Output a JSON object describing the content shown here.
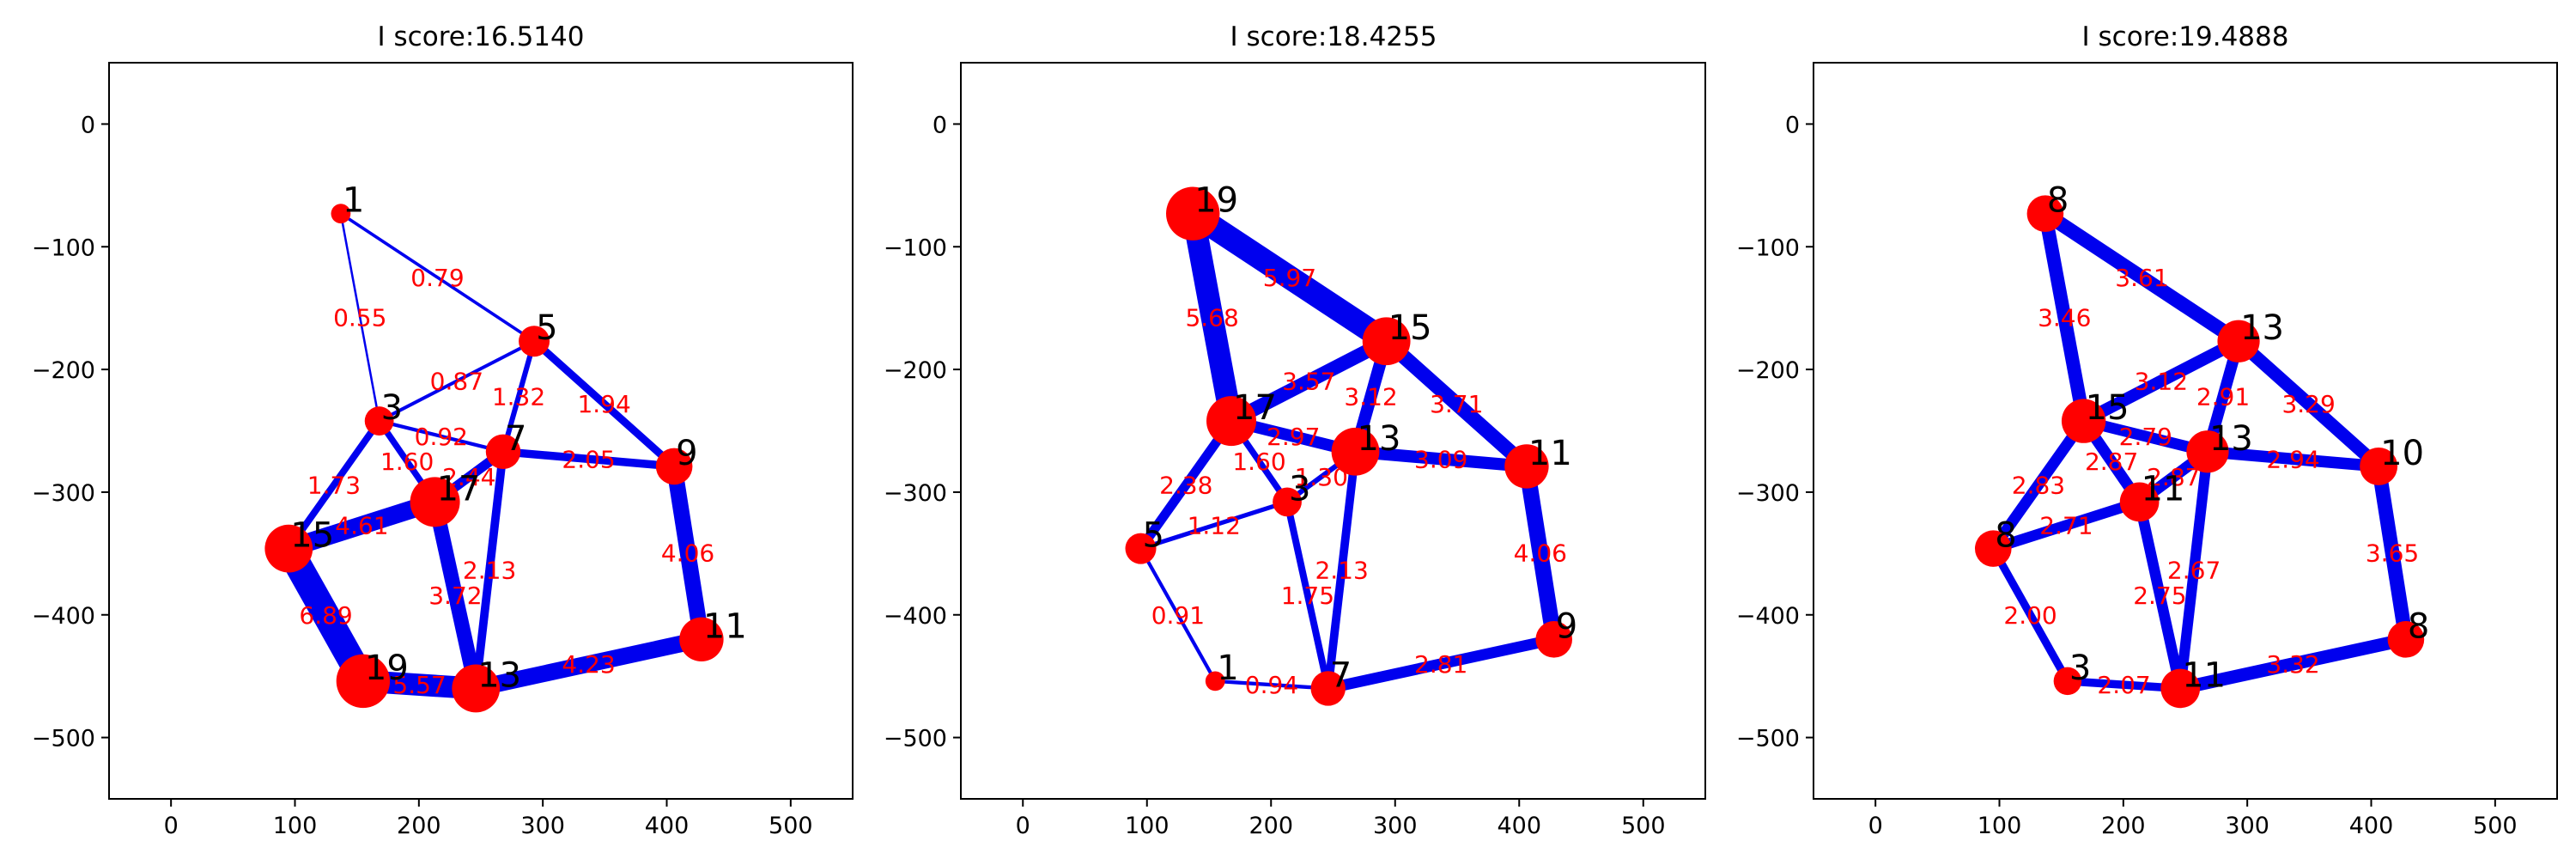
{
  "figure": {
    "panels": [
      {
        "title": "I score:16.5140",
        "nodes": [
          {
            "id": "a",
            "label": "1",
            "x": 137,
            "y": -73,
            "size": 0.2
          },
          {
            "id": "b",
            "label": "5",
            "x": 293,
            "y": -177,
            "size": 0.5
          },
          {
            "id": "c",
            "label": "3",
            "x": 168,
            "y": -242,
            "size": 0.45
          },
          {
            "id": "d",
            "label": "7",
            "x": 268,
            "y": -267,
            "size": 0.6
          },
          {
            "id": "e",
            "label": "9",
            "x": 406,
            "y": -279,
            "size": 0.65
          },
          {
            "id": "f",
            "label": "17",
            "x": 213,
            "y": -308,
            "size": 1.0
          },
          {
            "id": "g",
            "label": "15",
            "x": 95,
            "y": -346,
            "size": 0.95
          },
          {
            "id": "h",
            "label": "11",
            "x": 428,
            "y": -420,
            "size": 0.85
          },
          {
            "id": "i",
            "label": "19",
            "x": 155,
            "y": -454,
            "size": 1.1
          },
          {
            "id": "j",
            "label": "13",
            "x": 246,
            "y": -460,
            "size": 0.95
          }
        ],
        "edges": [
          {
            "from": "a",
            "to": "b",
            "weight": 0.79,
            "label": "0.79"
          },
          {
            "from": "a",
            "to": "c",
            "weight": 0.55,
            "label": "0.55"
          },
          {
            "from": "c",
            "to": "b",
            "weight": 0.87,
            "label": "0.87"
          },
          {
            "from": "b",
            "to": "d",
            "weight": 1.32,
            "label": "1.32"
          },
          {
            "from": "b",
            "to": "e",
            "weight": 1.94,
            "label": "1.94"
          },
          {
            "from": "c",
            "to": "d",
            "weight": 0.92,
            "label": "0.92"
          },
          {
            "from": "c",
            "to": "f",
            "weight": 1.6,
            "label": "1.60"
          },
          {
            "from": "c",
            "to": "g",
            "weight": 1.73,
            "label": "1.73"
          },
          {
            "from": "d",
            "to": "e",
            "weight": 2.05,
            "label": "2.05"
          },
          {
            "from": "d",
            "to": "f",
            "weight": 2.44,
            "label": "2.44"
          },
          {
            "from": "d",
            "to": "j",
            "weight": 2.13,
            "label": "2.13"
          },
          {
            "from": "f",
            "to": "g",
            "weight": 4.61,
            "label": "4.61"
          },
          {
            "from": "f",
            "to": "j",
            "weight": 3.72,
            "label": "3.72"
          },
          {
            "from": "e",
            "to": "h",
            "weight": 4.06,
            "label": "4.06"
          },
          {
            "from": "g",
            "to": "i",
            "weight": 6.89,
            "label": "6.89"
          },
          {
            "from": "i",
            "to": "j",
            "weight": 5.57,
            "label": "5.57"
          },
          {
            "from": "j",
            "to": "h",
            "weight": 4.23,
            "label": "4.23"
          }
        ]
      },
      {
        "title": "I score:18.4255",
        "nodes": [
          {
            "id": "a",
            "label": "19",
            "x": 137,
            "y": -73,
            "size": 1.1
          },
          {
            "id": "b",
            "label": "15",
            "x": 293,
            "y": -177,
            "size": 0.95
          },
          {
            "id": "c",
            "label": "17",
            "x": 168,
            "y": -242,
            "size": 1.0
          },
          {
            "id": "d",
            "label": "13",
            "x": 268,
            "y": -267,
            "size": 0.95
          },
          {
            "id": "e",
            "label": "11",
            "x": 406,
            "y": -279,
            "size": 0.85
          },
          {
            "id": "f",
            "label": "3",
            "x": 213,
            "y": -308,
            "size": 0.45
          },
          {
            "id": "g",
            "label": "5",
            "x": 95,
            "y": -346,
            "size": 0.5
          },
          {
            "id": "h",
            "label": "9",
            "x": 428,
            "y": -420,
            "size": 0.65
          },
          {
            "id": "i",
            "label": "1",
            "x": 155,
            "y": -454,
            "size": 0.2
          },
          {
            "id": "j",
            "label": "7",
            "x": 246,
            "y": -460,
            "size": 0.6
          }
        ],
        "edges": [
          {
            "from": "a",
            "to": "b",
            "weight": 5.97,
            "label": "5.97"
          },
          {
            "from": "a",
            "to": "c",
            "weight": 5.68,
            "label": "5.68"
          },
          {
            "from": "c",
            "to": "b",
            "weight": 3.57,
            "label": "3.57"
          },
          {
            "from": "b",
            "to": "d",
            "weight": 3.12,
            "label": "3.12"
          },
          {
            "from": "b",
            "to": "e",
            "weight": 3.71,
            "label": "3.71"
          },
          {
            "from": "c",
            "to": "d",
            "weight": 2.97,
            "label": "2.97"
          },
          {
            "from": "c",
            "to": "f",
            "weight": 1.6,
            "label": "1.60"
          },
          {
            "from": "c",
            "to": "g",
            "weight": 2.38,
            "label": "2.38"
          },
          {
            "from": "d",
            "to": "e",
            "weight": 3.09,
            "label": "3.09"
          },
          {
            "from": "d",
            "to": "f",
            "weight": 1.3,
            "label": "1.30"
          },
          {
            "from": "d",
            "to": "j",
            "weight": 2.13,
            "label": "2.13"
          },
          {
            "from": "f",
            "to": "g",
            "weight": 1.12,
            "label": "1.12"
          },
          {
            "from": "f",
            "to": "j",
            "weight": 1.75,
            "label": "1.75"
          },
          {
            "from": "e",
            "to": "h",
            "weight": 4.06,
            "label": "4.06"
          },
          {
            "from": "g",
            "to": "i",
            "weight": 0.91,
            "label": "0.91"
          },
          {
            "from": "i",
            "to": "j",
            "weight": 0.94,
            "label": "0.94"
          },
          {
            "from": "j",
            "to": "h",
            "weight": 2.81,
            "label": "2.81"
          }
        ]
      },
      {
        "title": "I score:19.4888",
        "nodes": [
          {
            "id": "a",
            "label": "8",
            "x": 137,
            "y": -73,
            "size": 0.65
          },
          {
            "id": "b",
            "label": "13",
            "x": 293,
            "y": -177,
            "size": 0.8
          },
          {
            "id": "c",
            "label": "15",
            "x": 168,
            "y": -242,
            "size": 0.85
          },
          {
            "id": "d",
            "label": "13",
            "x": 268,
            "y": -267,
            "size": 0.8
          },
          {
            "id": "e",
            "label": "10",
            "x": 406,
            "y": -279,
            "size": 0.68
          },
          {
            "id": "f",
            "label": "11",
            "x": 213,
            "y": -308,
            "size": 0.72
          },
          {
            "id": "g",
            "label": "8",
            "x": 95,
            "y": -346,
            "size": 0.65
          },
          {
            "id": "h",
            "label": "8",
            "x": 428,
            "y": -420,
            "size": 0.65
          },
          {
            "id": "i",
            "label": "3",
            "x": 155,
            "y": -454,
            "size": 0.42
          },
          {
            "id": "j",
            "label": "11",
            "x": 246,
            "y": -460,
            "size": 0.72
          }
        ],
        "edges": [
          {
            "from": "a",
            "to": "b",
            "weight": 3.61,
            "label": "3.61"
          },
          {
            "from": "a",
            "to": "c",
            "weight": 3.46,
            "label": "3.46"
          },
          {
            "from": "c",
            "to": "b",
            "weight": 3.12,
            "label": "3.12"
          },
          {
            "from": "b",
            "to": "d",
            "weight": 2.91,
            "label": "2.91"
          },
          {
            "from": "b",
            "to": "e",
            "weight": 3.29,
            "label": "3.29"
          },
          {
            "from": "c",
            "to": "d",
            "weight": 2.79,
            "label": "2.79"
          },
          {
            "from": "c",
            "to": "f",
            "weight": 2.87,
            "label": "2.87"
          },
          {
            "from": "c",
            "to": "g",
            "weight": 2.83,
            "label": "2.83"
          },
          {
            "from": "d",
            "to": "e",
            "weight": 2.94,
            "label": "2.94"
          },
          {
            "from": "d",
            "to": "f",
            "weight": 2.87,
            "label": "2.87"
          },
          {
            "from": "d",
            "to": "j",
            "weight": 2.67,
            "label": "2.67"
          },
          {
            "from": "f",
            "to": "g",
            "weight": 2.71,
            "label": "2.71"
          },
          {
            "from": "f",
            "to": "j",
            "weight": 2.75,
            "label": "2.75"
          },
          {
            "from": "e",
            "to": "h",
            "weight": 3.65,
            "label": "3.65"
          },
          {
            "from": "g",
            "to": "i",
            "weight": 2.0,
            "label": "2.00"
          },
          {
            "from": "i",
            "to": "j",
            "weight": 2.07,
            "label": "2.07"
          },
          {
            "from": "j",
            "to": "h",
            "weight": 3.32,
            "label": "3.32"
          }
        ]
      }
    ],
    "axes": {
      "xlim": [
        -50,
        550
      ],
      "ylim": [
        -550,
        50
      ],
      "xticks": [
        0,
        100,
        200,
        300,
        400,
        500
      ],
      "yticks": [
        0,
        -100,
        -200,
        -300,
        -400,
        -500
      ],
      "xtick_labels": [
        "0",
        "100",
        "200",
        "300",
        "400",
        "500"
      ],
      "ytick_labels": [
        "0",
        "−100",
        "−200",
        "−300",
        "−400",
        "−500"
      ]
    },
    "colors": {
      "edge": "#0000ee",
      "node": "#ff0000",
      "edge_label": "#ff0000"
    }
  }
}
